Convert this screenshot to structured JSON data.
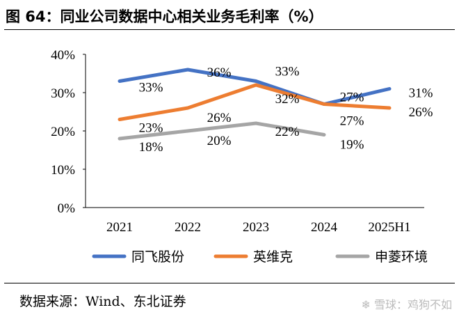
{
  "title": "图 64：同业公司数据中心相关业务毛利率（%）",
  "source": "数据来源：Wind、东北证券",
  "watermark": "雪球：鸡狗不如",
  "chart_data": {
    "type": "line",
    "categories": [
      "2021",
      "2022",
      "2023",
      "2024",
      "2025H1"
    ],
    "ylim": [
      0,
      40
    ],
    "yticks": [
      0,
      10,
      20,
      30,
      40
    ],
    "ytick_labels": [
      "0%",
      "10%",
      "20%",
      "30%",
      "40%"
    ],
    "grid": false,
    "legend_placement": "bottom",
    "series": [
      {
        "name": "同飞股份",
        "color": "#4472C4",
        "values": [
          33,
          36,
          33,
          27,
          31
        ],
        "labels": [
          "33%",
          "36%",
          "33%",
          "27%",
          "31%"
        ]
      },
      {
        "name": "英维克",
        "color": "#ED7D31",
        "values": [
          23,
          26,
          32,
          27,
          26
        ],
        "labels": [
          "23%",
          "26%",
          "32%",
          "27%",
          "26%"
        ]
      },
      {
        "name": "申菱环境",
        "color": "#A5A5A5",
        "values": [
          18,
          20,
          22,
          19,
          null
        ],
        "labels": [
          "18%",
          "20%",
          "22%",
          "19%",
          null
        ]
      }
    ]
  }
}
